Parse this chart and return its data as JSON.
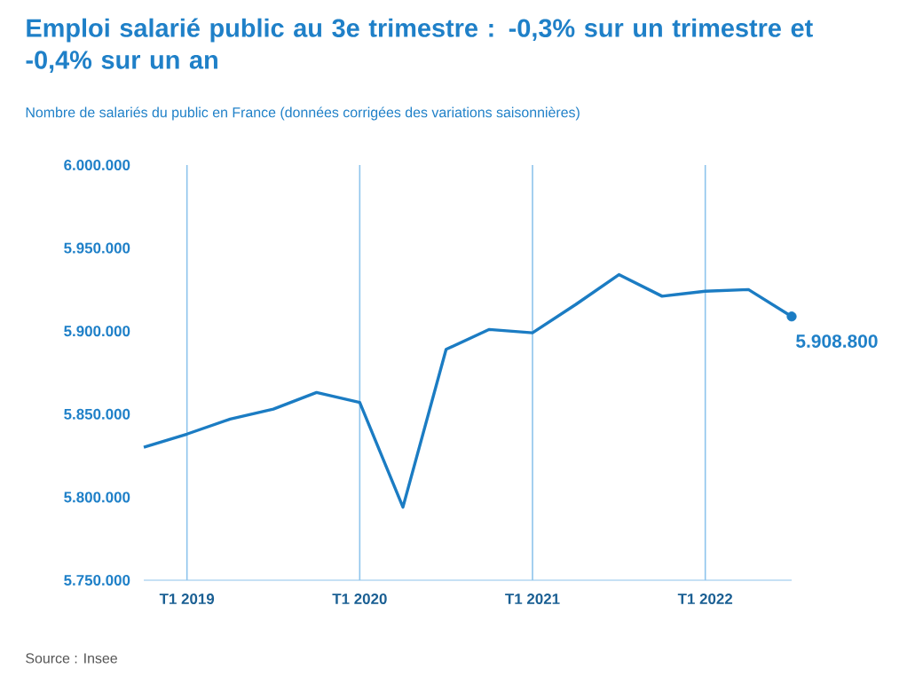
{
  "chart_data": {
    "type": "line",
    "title": "Emploi salarié public au 3e trimestre : -0,3% sur un trimestre et -0,4% sur un an",
    "subtitle": "Nombre de salariés du public en France (données corrigées des variations saisonnières)",
    "x": [
      "2018-10",
      "2019-01",
      "2019-04",
      "2019-07",
      "2019-10",
      "2020-01",
      "2020-04",
      "2020-07",
      "2020-10",
      "2021-01",
      "2021-04",
      "2021-07",
      "2021-10",
      "2022-01",
      "2022-04",
      "2022-07"
    ],
    "values": [
      5830000,
      5838000,
      5847000,
      5853000,
      5863000,
      5857000,
      5794000,
      5889000,
      5901000,
      5899000,
      5916000,
      5934000,
      5921000,
      5924000,
      5925000,
      5908800
    ],
    "value_labels": [
      null,
      null,
      null,
      null,
      null,
      null,
      null,
      null,
      null,
      null,
      null,
      null,
      null,
      null,
      null,
      "5.908.800"
    ],
    "color": "#1b7cc3",
    "line_style": "solid",
    "xticks": [
      {
        "value": "2019-01",
        "label": "T1 2019"
      },
      {
        "value": "2020-01",
        "label": "T1 2020"
      },
      {
        "value": "2021-01",
        "label": "T1 2021"
      },
      {
        "value": "2022-01",
        "label": "T1 2022"
      }
    ],
    "ylim": [
      5750000,
      6000000
    ],
    "yticks": [
      {
        "value": 5750000,
        "label": "5.750.000"
      },
      {
        "value": 5800000,
        "label": "5.800.000"
      },
      {
        "value": 5850000,
        "label": "5.850.000"
      },
      {
        "value": 5900000,
        "label": "5.900.000"
      },
      {
        "value": 5950000,
        "label": "5.950.000"
      },
      {
        "value": 6000000,
        "label": "6.000.000"
      }
    ],
    "xlim": [
      "2018-10",
      "2022-07"
    ],
    "grid": "x",
    "annotations": [
      "Source : Insee"
    ]
  }
}
